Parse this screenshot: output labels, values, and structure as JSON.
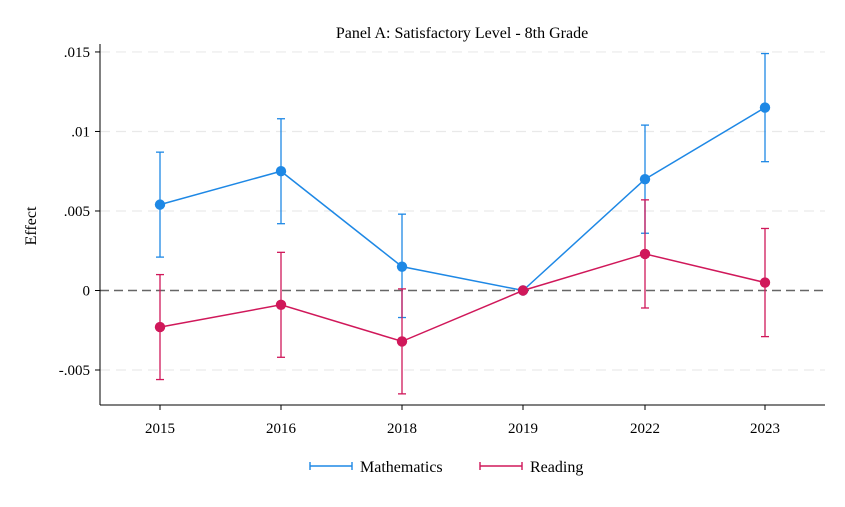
{
  "chart_data": {
    "type": "line",
    "title": "Panel A: Satisfactory Level - 8th Grade",
    "xlabel": "",
    "ylabel": "Effect",
    "categories": [
      "2015",
      "2016",
      "2018",
      "2019",
      "2022",
      "2023"
    ],
    "yticks": [
      -0.005,
      0,
      0.005,
      0.01,
      0.015
    ],
    "ytick_labels": [
      "-.005",
      "0",
      ".005",
      ".01",
      ".015"
    ],
    "ylim": [
      -0.0072,
      0.0155
    ],
    "grid": true,
    "reference_line": 0,
    "legend_position": "bottom",
    "series": [
      {
        "name": "Mathematics",
        "color": "#1e88e5",
        "values": [
          0.0054,
          0.0075,
          0.0015,
          0.0,
          0.007,
          0.0115
        ],
        "ci_lower": [
          0.0021,
          0.0042,
          -0.0017,
          0.0,
          0.0036,
          0.0081
        ],
        "ci_upper": [
          0.0087,
          0.0108,
          0.0048,
          0.0,
          0.0104,
          0.0149
        ]
      },
      {
        "name": "Reading",
        "color": "#d0185a",
        "values": [
          -0.0023,
          -0.0009,
          -0.0032,
          0.0,
          0.0023,
          0.0005
        ],
        "ci_lower": [
          -0.0056,
          -0.0042,
          -0.0065,
          0.0,
          -0.0011,
          -0.0029
        ],
        "ci_upper": [
          0.001,
          0.0024,
          0.0001,
          0.0,
          0.0057,
          0.0039
        ]
      }
    ]
  }
}
